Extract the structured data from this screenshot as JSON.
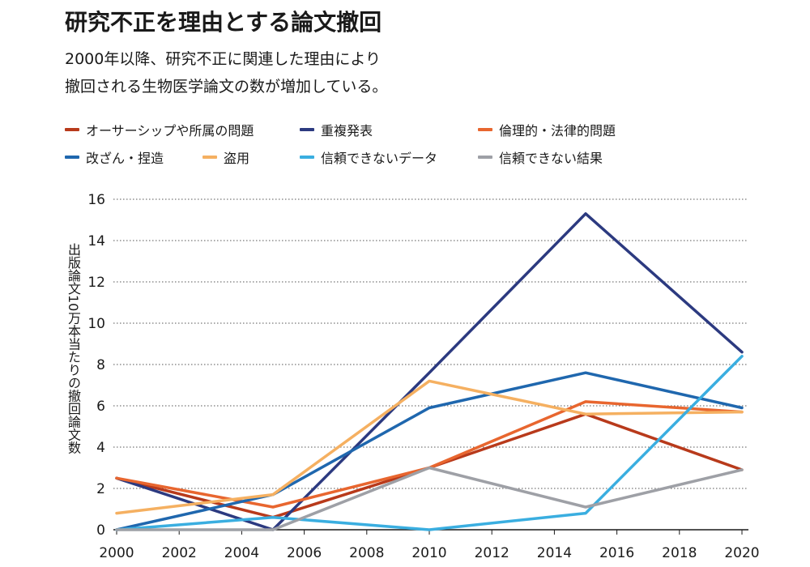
{
  "header": {
    "title": "研究不正を理由とする論文撤回",
    "subtitle_lines": [
      "2000年以降、研究不正に関連した理由により",
      "撤回される生物医学論文の数が増加している。"
    ]
  },
  "chart_data": {
    "type": "line",
    "title": "研究不正を理由とする論文撤回",
    "xlabel": "",
    "ylabel": "出版論文10万本当たりの撤回論文数",
    "x": [
      2000,
      2005,
      2010,
      2015,
      2020
    ],
    "xlim": [
      2000,
      2020
    ],
    "ylim": [
      0,
      16
    ],
    "xticks": [
      "2000",
      "2002",
      "2004",
      "2006",
      "2008",
      "2010",
      "2012",
      "2014",
      "2016",
      "2018",
      "2020"
    ],
    "yticks": [
      "0",
      "2",
      "4",
      "6",
      "8",
      "10",
      "12",
      "14",
      "16"
    ],
    "grid": true,
    "legend_position": "top",
    "series": [
      {
        "name": "オーサーシップや所属の問題",
        "color": "#b83a1b",
        "values": [
          2.5,
          0.6,
          3.0,
          5.6,
          2.9
        ]
      },
      {
        "name": "重複発表",
        "color": "#2c3a80",
        "values": [
          2.5,
          0.0,
          7.6,
          15.3,
          8.6
        ]
      },
      {
        "name": "倫理的・法律的問題",
        "color": "#e8662f",
        "values": [
          2.5,
          1.1,
          3.0,
          6.2,
          5.7
        ]
      },
      {
        "name": "改ざん・捏造",
        "color": "#1f67ae",
        "values": [
          0.0,
          1.7,
          5.9,
          7.6,
          5.9
        ]
      },
      {
        "name": "盗用",
        "color": "#f5b061",
        "values": [
          0.8,
          1.7,
          7.2,
          5.6,
          5.7
        ]
      },
      {
        "name": "信頼できないデータ",
        "color": "#3aaee0",
        "values": [
          0.0,
          0.6,
          0.0,
          0.8,
          8.4
        ]
      },
      {
        "name": "信頼できない結果",
        "color": "#9ea0a6",
        "values": [
          0.0,
          0.0,
          3.0,
          1.1,
          2.9
        ]
      }
    ]
  }
}
